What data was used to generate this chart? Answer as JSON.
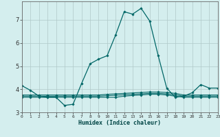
{
  "xlabel": "Humidex (Indice chaleur)",
  "bg_color": "#d4eeee",
  "line_color": "#006666",
  "grid_color": "#b0c8c8",
  "x": [
    0,
    1,
    2,
    3,
    4,
    5,
    6,
    7,
    8,
    9,
    10,
    11,
    12,
    13,
    14,
    15,
    16,
    17,
    18,
    19,
    20,
    21,
    22,
    23
  ],
  "y_main": [
    4.15,
    3.95,
    3.7,
    3.65,
    3.65,
    3.3,
    3.35,
    4.25,
    5.1,
    5.3,
    5.45,
    6.35,
    7.35,
    7.25,
    7.5,
    6.95,
    5.45,
    4.05,
    3.65,
    3.7,
    3.85,
    4.2,
    4.05,
    4.05
  ],
  "y_flat1": [
    3.65,
    3.65,
    3.65,
    3.65,
    3.65,
    3.65,
    3.65,
    3.65,
    3.65,
    3.65,
    3.65,
    3.65,
    3.7,
    3.73,
    3.75,
    3.78,
    3.78,
    3.75,
    3.7,
    3.65,
    3.65,
    3.65,
    3.65,
    3.65
  ],
  "y_flat2": [
    3.7,
    3.7,
    3.7,
    3.7,
    3.7,
    3.7,
    3.7,
    3.7,
    3.7,
    3.7,
    3.72,
    3.74,
    3.76,
    3.78,
    3.8,
    3.82,
    3.82,
    3.8,
    3.76,
    3.7,
    3.7,
    3.7,
    3.7,
    3.7
  ],
  "y_flat3": [
    3.75,
    3.75,
    3.75,
    3.75,
    3.75,
    3.75,
    3.75,
    3.75,
    3.75,
    3.75,
    3.78,
    3.8,
    3.82,
    3.84,
    3.86,
    3.88,
    3.88,
    3.86,
    3.82,
    3.75,
    3.75,
    3.75,
    3.75,
    3.75
  ],
  "xlim": [
    0,
    23
  ],
  "ylim": [
    3.0,
    7.8
  ],
  "yticks": [
    3,
    4,
    5,
    6,
    7
  ],
  "xticks": [
    0,
    1,
    2,
    3,
    4,
    5,
    6,
    7,
    8,
    9,
    10,
    11,
    12,
    13,
    14,
    15,
    16,
    17,
    18,
    19,
    20,
    21,
    22,
    23
  ],
  "xtick_labels": [
    "0",
    "1",
    "2",
    "3",
    "4",
    "5",
    "6",
    "7",
    "8",
    "9",
    "10",
    "11",
    "12",
    "13",
    "14",
    "15",
    "16",
    "17",
    "18",
    "19",
    "20",
    "21",
    "22",
    "23"
  ]
}
